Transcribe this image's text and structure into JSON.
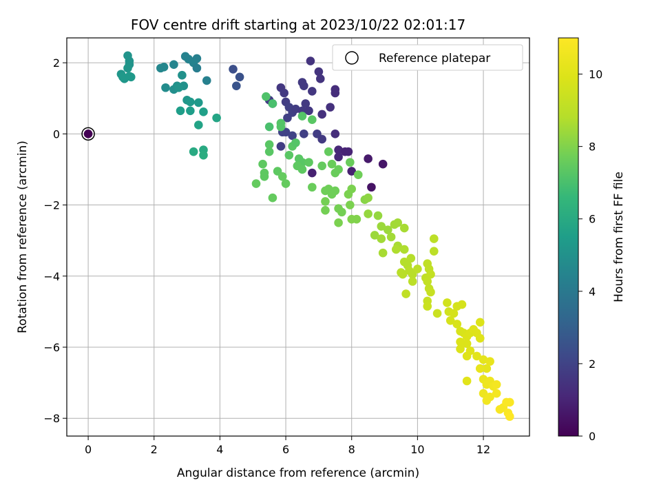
{
  "chart_data": {
    "type": "scatter",
    "title": "FOV centre drift starting at 2023/10/22 02:01:17",
    "xlabel": "Angular distance from reference (arcmin)",
    "ylabel": "Rotation from reference (arcmin)",
    "xlim": [
      -0.65,
      13.4
    ],
    "ylim": [
      -8.5,
      2.7
    ],
    "xticks": [
      0,
      2,
      4,
      6,
      8,
      10,
      12
    ],
    "yticks": [
      -8,
      -6,
      -4,
      -2,
      0,
      2
    ],
    "grid": true,
    "legend": {
      "label": "Reference platepar",
      "placement": "top-right",
      "marker": "open-circle"
    },
    "colorbar": {
      "label": "Hours from first FF file",
      "colormap": "viridis",
      "range": [
        0,
        11
      ],
      "ticks": [
        0,
        2,
        4,
        6,
        8,
        10
      ]
    },
    "reference_point": {
      "x": 0,
      "y": 0,
      "hours": 0
    },
    "points": [
      [
        1.2,
        2.2,
        5.1
      ],
      [
        1.25,
        2.05,
        5.1
      ],
      [
        1.25,
        1.95,
        5.1
      ],
      [
        1.2,
        1.85,
        5.2
      ],
      [
        1.0,
        1.68,
        5.2
      ],
      [
        1.1,
        1.55,
        5.2
      ],
      [
        1.05,
        1.6,
        5.3
      ],
      [
        1.25,
        1.62,
        5.3
      ],
      [
        1.3,
        1.6,
        5.3
      ],
      [
        2.2,
        1.85,
        4.6
      ],
      [
        2.3,
        1.88,
        4.6
      ],
      [
        2.6,
        1.95,
        4.5
      ],
      [
        2.95,
        2.18,
        4.4
      ],
      [
        3.05,
        2.1,
        4.4
      ],
      [
        3.3,
        2.12,
        4.3
      ],
      [
        3.2,
        2.0,
        4.4
      ],
      [
        3.3,
        1.85,
        4.2
      ],
      [
        2.35,
        1.3,
        4.8
      ],
      [
        2.6,
        1.25,
        4.9
      ],
      [
        2.7,
        1.35,
        5.0
      ],
      [
        2.9,
        1.35,
        5.0
      ],
      [
        2.85,
        1.65,
        5.0
      ],
      [
        2.75,
        1.3,
        5.1
      ],
      [
        3.0,
        0.95,
        5.2
      ],
      [
        3.1,
        0.9,
        5.3
      ],
      [
        3.35,
        0.88,
        5.3
      ],
      [
        2.8,
        0.65,
        5.5
      ],
      [
        3.1,
        0.65,
        5.5
      ],
      [
        3.35,
        0.25,
        5.7
      ],
      [
        3.9,
        0.45,
        5.8
      ],
      [
        3.5,
        0.62,
        5.6
      ],
      [
        3.5,
        -0.45,
        6.0
      ],
      [
        3.2,
        -0.5,
        6.0
      ],
      [
        3.5,
        -0.6,
        6.1
      ],
      [
        3.6,
        1.5,
        4.3
      ],
      [
        4.4,
        1.82,
        2.4
      ],
      [
        4.6,
        1.6,
        2.5
      ],
      [
        4.5,
        1.35,
        2.6
      ],
      [
        5.85,
        1.3,
        1.6
      ],
      [
        5.95,
        1.15,
        1.7
      ],
      [
        5.5,
        0.95,
        1.8
      ],
      [
        5.6,
        0.85,
        1.8
      ],
      [
        6.0,
        0.9,
        1.8
      ],
      [
        6.1,
        0.75,
        1.9
      ],
      [
        6.2,
        0.6,
        1.9
      ],
      [
        6.3,
        0.7,
        1.8
      ],
      [
        6.5,
        0.65,
        1.7
      ],
      [
        6.6,
        0.85,
        1.7
      ],
      [
        6.7,
        0.65,
        1.6
      ],
      [
        6.5,
        1.45,
        1.7
      ],
      [
        6.55,
        1.35,
        1.7
      ],
      [
        6.8,
        1.2,
        1.6
      ],
      [
        6.75,
        2.05,
        1.5
      ],
      [
        7.0,
        1.75,
        1.5
      ],
      [
        7.05,
        1.55,
        1.5
      ],
      [
        7.1,
        0.55,
        1.4
      ],
      [
        7.35,
        0.75,
        1.4
      ],
      [
        7.5,
        1.25,
        1.3
      ],
      [
        7.5,
        1.15,
        1.3
      ],
      [
        7.5,
        0.0,
        1.3
      ],
      [
        6.05,
        0.45,
        1.9
      ],
      [
        5.9,
        0.05,
        2.0
      ],
      [
        6.0,
        0.05,
        2.0
      ],
      [
        6.2,
        -0.05,
        2.0
      ],
      [
        6.55,
        0.0,
        1.9
      ],
      [
        6.95,
        0.0,
        1.8
      ],
      [
        7.1,
        -0.15,
        1.7
      ],
      [
        7.6,
        -0.45,
        1.1
      ],
      [
        7.6,
        -0.65,
        1.1
      ],
      [
        7.8,
        -0.5,
        1.0
      ],
      [
        7.9,
        -0.5,
        1.0
      ],
      [
        8.0,
        -1.05,
        0.9
      ],
      [
        8.5,
        -0.7,
        0.7
      ],
      [
        8.95,
        -0.85,
        0.6
      ],
      [
        8.6,
        -1.5,
        0.5
      ],
      [
        6.8,
        -1.1,
        0.9
      ],
      [
        5.85,
        -0.35,
        1.8
      ],
      [
        5.4,
        1.05,
        7.1
      ],
      [
        5.6,
        0.85,
        7.0
      ],
      [
        5.5,
        0.2,
        7.0
      ],
      [
        5.85,
        0.2,
        7.2
      ],
      [
        5.85,
        0.3,
        7.2
      ],
      [
        6.5,
        0.5,
        7.2
      ],
      [
        6.8,
        0.4,
        7.3
      ],
      [
        5.5,
        -0.3,
        7.3
      ],
      [
        5.5,
        -0.5,
        7.3
      ],
      [
        6.1,
        -0.6,
        7.3
      ],
      [
        6.2,
        -0.35,
        7.3
      ],
      [
        6.3,
        -0.25,
        7.2
      ],
      [
        6.4,
        -0.7,
        7.3
      ],
      [
        6.5,
        -0.8,
        7.3
      ],
      [
        6.7,
        -0.8,
        7.4
      ],
      [
        6.35,
        -0.9,
        7.4
      ],
      [
        6.5,
        -1.0,
        7.4
      ],
      [
        6.8,
        -1.5,
        7.6
      ],
      [
        5.3,
        -0.85,
        7.4
      ],
      [
        5.35,
        -1.1,
        7.4
      ],
      [
        5.35,
        -1.2,
        7.4
      ],
      [
        5.1,
        -1.4,
        7.5
      ],
      [
        5.6,
        -1.8,
        7.5
      ],
      [
        5.75,
        -1.05,
        7.4
      ],
      [
        5.9,
        -1.2,
        7.5
      ],
      [
        6.0,
        -1.4,
        7.5
      ],
      [
        7.1,
        -0.9,
        7.5
      ],
      [
        7.3,
        -0.5,
        7.5
      ],
      [
        7.4,
        -0.85,
        7.6
      ],
      [
        7.5,
        -1.1,
        7.6
      ],
      [
        7.6,
        -1.0,
        7.6
      ],
      [
        7.2,
        -1.6,
        7.7
      ],
      [
        7.3,
        -1.55,
        7.7
      ],
      [
        7.4,
        -1.7,
        7.7
      ],
      [
        7.5,
        -1.6,
        7.7
      ],
      [
        7.2,
        -1.9,
        7.8
      ],
      [
        7.2,
        -2.15,
        7.8
      ],
      [
        7.6,
        -2.1,
        7.8
      ],
      [
        7.7,
        -2.2,
        7.8
      ],
      [
        7.9,
        -1.7,
        7.9
      ],
      [
        8.0,
        -1.55,
        7.9
      ],
      [
        7.95,
        -2.0,
        7.9
      ],
      [
        7.6,
        -2.5,
        7.9
      ],
      [
        8.0,
        -2.4,
        8.0
      ],
      [
        8.15,
        -2.4,
        8.0
      ],
      [
        8.4,
        -1.85,
        8.1
      ],
      [
        8.5,
        -1.8,
        8.2
      ],
      [
        7.95,
        -0.8,
        7.6
      ],
      [
        8.2,
        -1.15,
        7.7
      ],
      [
        8.5,
        -2.25,
        8.3
      ],
      [
        8.8,
        -2.3,
        8.3
      ],
      [
        8.9,
        -2.6,
        8.4
      ],
      [
        8.7,
        -2.85,
        8.4
      ],
      [
        8.9,
        -2.95,
        8.5
      ],
      [
        9.1,
        -2.7,
        8.4
      ],
      [
        9.2,
        -2.9,
        8.5
      ],
      [
        9.3,
        -2.55,
        8.5
      ],
      [
        9.4,
        -2.5,
        8.5
      ],
      [
        9.4,
        -3.15,
        8.6
      ],
      [
        9.6,
        -2.65,
        8.6
      ],
      [
        8.95,
        -3.35,
        8.6
      ],
      [
        9.35,
        -3.25,
        8.7
      ],
      [
        9.6,
        -3.25,
        8.7
      ],
      [
        9.6,
        -3.6,
        8.8
      ],
      [
        9.7,
        -3.7,
        8.8
      ],
      [
        9.8,
        -3.5,
        8.8
      ],
      [
        9.75,
        -3.85,
        8.9
      ],
      [
        9.85,
        -3.95,
        8.9
      ],
      [
        9.5,
        -3.9,
        8.9
      ],
      [
        9.55,
        -3.95,
        8.9
      ],
      [
        9.85,
        -4.15,
        9.0
      ],
      [
        10.0,
        -3.8,
        9.0
      ],
      [
        9.65,
        -4.5,
        9.1
      ],
      [
        10.25,
        -4.05,
        9.1
      ],
      [
        10.3,
        -3.65,
        9.1
      ],
      [
        10.35,
        -3.8,
        9.1
      ],
      [
        10.4,
        -3.95,
        9.2
      ],
      [
        10.3,
        -4.15,
        9.2
      ],
      [
        10.35,
        -4.35,
        9.2
      ],
      [
        10.4,
        -4.45,
        9.3
      ],
      [
        10.5,
        -3.3,
        9.0
      ],
      [
        10.5,
        -2.95,
        9.0
      ],
      [
        10.3,
        -4.7,
        9.3
      ],
      [
        10.3,
        -4.85,
        9.4
      ],
      [
        10.6,
        -5.05,
        9.4
      ],
      [
        10.9,
        -4.75,
        9.6
      ],
      [
        10.95,
        -5.0,
        9.6
      ],
      [
        11.1,
        -5.05,
        9.7
      ],
      [
        11.2,
        -4.85,
        9.7
      ],
      [
        11.35,
        -4.8,
        9.7
      ],
      [
        11.0,
        -5.25,
        9.7
      ],
      [
        11.2,
        -5.35,
        9.8
      ],
      [
        11.3,
        -5.55,
        9.8
      ],
      [
        11.4,
        -5.6,
        9.8
      ],
      [
        11.3,
        -6.05,
        9.9
      ],
      [
        11.5,
        -5.9,
        9.9
      ],
      [
        11.5,
        -5.7,
        9.9
      ],
      [
        11.6,
        -5.6,
        9.9
      ],
      [
        11.7,
        -5.5,
        10.0
      ],
      [
        11.8,
        -5.6,
        10.0
      ],
      [
        11.9,
        -5.3,
        9.9
      ],
      [
        11.9,
        -5.75,
        10.0
      ],
      [
        11.6,
        -6.1,
        10.0
      ],
      [
        11.5,
        -6.25,
        10.0
      ],
      [
        11.3,
        -5.85,
        9.9
      ],
      [
        11.8,
        -6.25,
        10.1
      ],
      [
        12.0,
        -6.35,
        10.2
      ],
      [
        12.1,
        -6.6,
        10.2
      ],
      [
        12.2,
        -6.4,
        10.3
      ],
      [
        11.9,
        -6.6,
        10.3
      ],
      [
        11.5,
        -6.95,
        10.1
      ],
      [
        12.0,
        -6.9,
        10.4
      ],
      [
        12.1,
        -7.05,
        10.5
      ],
      [
        12.2,
        -6.95,
        10.5
      ],
      [
        12.0,
        -7.3,
        10.5
      ],
      [
        12.1,
        -7.5,
        10.6
      ],
      [
        12.2,
        -7.4,
        10.6
      ],
      [
        12.3,
        -7.1,
        10.6
      ],
      [
        12.4,
        -7.05,
        10.7
      ],
      [
        12.4,
        -7.3,
        10.7
      ],
      [
        12.5,
        -7.75,
        10.8
      ],
      [
        12.6,
        -7.7,
        10.8
      ],
      [
        12.7,
        -7.55,
        10.9
      ],
      [
        12.8,
        -7.55,
        10.9
      ],
      [
        12.75,
        -7.85,
        10.9
      ],
      [
        12.8,
        -7.95,
        11.0
      ]
    ]
  }
}
